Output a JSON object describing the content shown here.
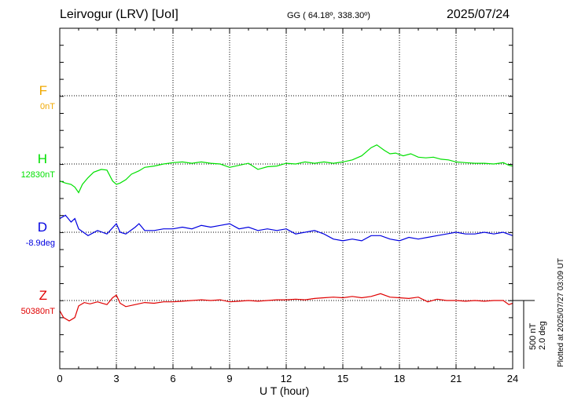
{
  "header": {
    "station": "Leirvogur (LRV)  [UoI]",
    "coords": "GG ( 64.18º, 338.30º)",
    "date": "2025/07/24"
  },
  "components": {
    "F": {
      "label": "F",
      "baseline": "0nT",
      "color": "#f0a800"
    },
    "H": {
      "label": "H",
      "baseline": "12830nT",
      "color": "#00e000"
    },
    "D": {
      "label": "D",
      "baseline": "-8.9deg",
      "color": "#0000e0"
    },
    "Z": {
      "label": "Z",
      "baseline": "50380nT",
      "color": "#e00000"
    }
  },
  "scale": {
    "line1": "500 nT",
    "line2": "2.0 deg"
  },
  "plotted": "Plotted at 2025/07/27 03:09 UT",
  "chart_data": {
    "type": "line",
    "xlabel": "U T (hour)",
    "xlim": [
      0,
      24
    ],
    "xticks": [
      0,
      3,
      6,
      9,
      12,
      15,
      18,
      21,
      24
    ],
    "scale_nT_per_division": 500,
    "scale_deg_per_division": 2.0,
    "series": [
      {
        "name": "H",
        "color": "#00e000",
        "x": [
          0,
          0.3,
          0.6,
          0.8,
          1.0,
          1.2,
          1.5,
          1.8,
          2.2,
          2.5,
          2.8,
          3.0,
          3.2,
          3.5,
          3.8,
          4.2,
          4.5,
          5.0,
          5.5,
          6.0,
          6.5,
          7.0,
          7.5,
          8.0,
          8.5,
          9.0,
          9.5,
          10.0,
          10.5,
          11.0,
          11.5,
          12.0,
          12.5,
          13.0,
          13.5,
          14.0,
          14.5,
          15.0,
          15.5,
          16.0,
          16.5,
          16.8,
          17.2,
          17.5,
          17.8,
          18.2,
          18.6,
          19.0,
          19.4,
          19.8,
          20.2,
          20.6,
          21.0,
          21.5,
          22.0,
          22.5,
          23.0,
          23.5,
          23.8,
          24.0
        ],
        "y": [
          -250,
          -280,
          -300,
          -340,
          -420,
          -300,
          -200,
          -120,
          -80,
          -90,
          -250,
          -300,
          -280,
          -230,
          -150,
          -100,
          -50,
          -30,
          0,
          20,
          30,
          10,
          30,
          10,
          0,
          -50,
          -20,
          10,
          -80,
          -40,
          -30,
          10,
          0,
          30,
          10,
          30,
          10,
          30,
          60,
          120,
          240,
          280,
          200,
          150,
          160,
          120,
          150,
          100,
          90,
          100,
          70,
          60,
          30,
          20,
          10,
          10,
          0,
          20,
          -20,
          -30
        ]
      },
      {
        "name": "D",
        "color": "#0000e0",
        "x": [
          0,
          0.3,
          0.6,
          0.8,
          1.0,
          1.5,
          2.0,
          2.5,
          3.0,
          3.2,
          3.5,
          4.0,
          4.2,
          4.5,
          5.0,
          5.5,
          6.0,
          6.5,
          7.0,
          7.5,
          8.0,
          8.5,
          9.0,
          9.5,
          10.0,
          10.5,
          11.0,
          11.5,
          12.0,
          12.5,
          13.0,
          13.5,
          14.0,
          14.5,
          15.0,
          15.5,
          16.0,
          16.5,
          17.0,
          17.5,
          18.0,
          18.5,
          19.0,
          19.5,
          20.0,
          20.5,
          21.0,
          21.5,
          22.0,
          22.5,
          23.0,
          23.5,
          24.0
        ],
        "y": [
          0.8,
          1.0,
          0.6,
          0.8,
          0.2,
          -0.2,
          0.1,
          -0.1,
          0.5,
          0,
          -0.1,
          0.3,
          0.5,
          0.1,
          0.1,
          0.2,
          0.2,
          0.3,
          0.2,
          0.4,
          0.3,
          0.4,
          0.5,
          0.2,
          0.3,
          0.1,
          0.2,
          0.1,
          0.2,
          -0.1,
          0,
          0.1,
          -0.1,
          -0.4,
          -0.5,
          -0.4,
          -0.5,
          -0.2,
          -0.2,
          -0.4,
          -0.5,
          -0.3,
          -0.4,
          -0.3,
          -0.2,
          -0.1,
          0,
          -0.1,
          -0.1,
          0,
          -0.1,
          0,
          -0.2
        ]
      },
      {
        "name": "Z",
        "color": "#e00000",
        "x": [
          0,
          0.2,
          0.5,
          0.8,
          1.0,
          1.3,
          1.6,
          2.0,
          2.5,
          2.8,
          3.0,
          3.2,
          3.5,
          4.0,
          4.5,
          5.0,
          5.5,
          6.0,
          6.5,
          7.0,
          7.5,
          8.0,
          8.5,
          9.0,
          9.5,
          10.0,
          10.5,
          11.0,
          11.5,
          12.0,
          12.5,
          13.0,
          13.5,
          14.0,
          14.5,
          15.0,
          15.5,
          16.0,
          16.5,
          17.0,
          17.5,
          18.0,
          18.5,
          19.0,
          19.5,
          20.0,
          20.5,
          21.0,
          21.5,
          22.0,
          22.5,
          23.0,
          23.5,
          23.8,
          24.0
        ],
        "y": [
          -150,
          -250,
          -300,
          -250,
          -80,
          -30,
          -50,
          -20,
          -60,
          40,
          80,
          -40,
          -90,
          -60,
          -30,
          -40,
          -20,
          -20,
          -10,
          0,
          10,
          0,
          10,
          -20,
          -10,
          0,
          -10,
          0,
          10,
          10,
          20,
          10,
          30,
          40,
          50,
          40,
          60,
          40,
          60,
          100,
          50,
          40,
          30,
          50,
          -20,
          20,
          0,
          0,
          -10,
          0,
          -10,
          0,
          0,
          -60,
          -40
        ]
      }
    ]
  }
}
